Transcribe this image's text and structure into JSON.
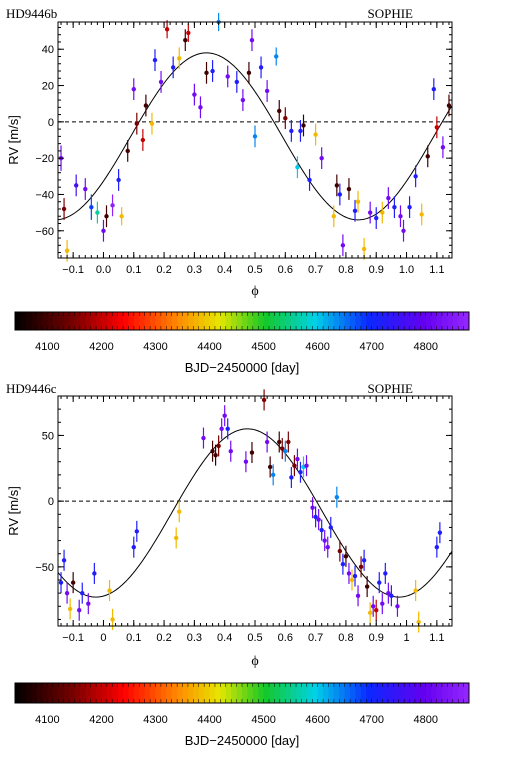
{
  "chart_data": [
    {
      "type": "scatter",
      "title": "HD9446b",
      "label_right": "SOPHIE",
      "xlabel": "ϕ",
      "ylabel": "RV [m/s]",
      "xlim": [
        -0.15,
        1.15
      ],
      "ylim": [
        -75,
        55
      ],
      "xticks": [
        -0.1,
        0.0,
        0.1,
        0.2,
        0.3,
        0.4,
        0.5,
        0.6,
        0.7,
        0.8,
        0.9,
        1.0,
        1.1
      ],
      "xtick_labels": [
        "−0.1",
        "0.0",
        "0.1",
        "0.2",
        "0.3",
        "0.4",
        "0.5",
        "0.6",
        "0.7",
        "0.8",
        "0.9",
        "1.0",
        "1.1"
      ],
      "yticks": [
        -60,
        -40,
        -20,
        0,
        20,
        40
      ],
      "ytick_labels": [
        "−60",
        "−40",
        "−20",
        "0",
        "20",
        "40"
      ],
      "model": {
        "offset": -8,
        "amplitude": 46,
        "phase_of_max": 0.34
      },
      "zero_line": 0,
      "points": [
        {
          "x": -0.14,
          "y": -20,
          "t": 4820,
          "err": 7
        },
        {
          "x": -0.13,
          "y": -48,
          "t": 4150,
          "err": 6
        },
        {
          "x": -0.12,
          "y": -71,
          "t": 4380,
          "err": 6
        },
        {
          "x": -0.09,
          "y": -35,
          "t": 4760,
          "err": 6
        },
        {
          "x": -0.06,
          "y": -37,
          "t": 4820,
          "err": 6
        },
        {
          "x": -0.04,
          "y": -47,
          "t": 4680,
          "err": 7
        },
        {
          "x": -0.02,
          "y": -50,
          "t": 4560,
          "err": 6
        },
        {
          "x": 0.0,
          "y": -60,
          "t": 4810,
          "err": 6
        },
        {
          "x": 0.01,
          "y": -52,
          "t": 4100,
          "err": 6
        },
        {
          "x": 0.03,
          "y": -46,
          "t": 4870,
          "err": 6
        },
        {
          "x": 0.05,
          "y": -32,
          "t": 4720,
          "err": 6
        },
        {
          "x": 0.06,
          "y": -52,
          "t": 4380,
          "err": 5
        },
        {
          "x": 0.08,
          "y": -16,
          "t": 4100,
          "err": 6
        },
        {
          "x": 0.1,
          "y": 18,
          "t": 4820,
          "err": 6
        },
        {
          "x": 0.11,
          "y": -1,
          "t": 4150,
          "err": 6
        },
        {
          "x": 0.13,
          "y": -10,
          "t": 4200,
          "err": 6
        },
        {
          "x": 0.14,
          "y": 9,
          "t": 4100,
          "err": 6
        },
        {
          "x": 0.16,
          "y": -1,
          "t": 4380,
          "err": 6
        },
        {
          "x": 0.17,
          "y": 34,
          "t": 4720,
          "err": 6
        },
        {
          "x": 0.19,
          "y": 22,
          "t": 4820,
          "err": 6
        },
        {
          "x": 0.21,
          "y": 51,
          "t": 4200,
          "err": 5
        },
        {
          "x": 0.23,
          "y": 30,
          "t": 4720,
          "err": 6
        },
        {
          "x": 0.25,
          "y": 35,
          "t": 4380,
          "err": 6
        },
        {
          "x": 0.27,
          "y": 45,
          "t": 4100,
          "err": 6
        },
        {
          "x": 0.28,
          "y": 49,
          "t": 4200,
          "err": 5
        },
        {
          "x": 0.3,
          "y": 15,
          "t": 4820,
          "err": 6
        },
        {
          "x": 0.32,
          "y": 8,
          "t": 4820,
          "err": 6
        },
        {
          "x": 0.34,
          "y": 27,
          "t": 4100,
          "err": 6
        },
        {
          "x": 0.36,
          "y": 28,
          "t": 4720,
          "err": 6
        },
        {
          "x": 0.38,
          "y": 55,
          "t": 4640,
          "err": 5
        },
        {
          "x": 0.41,
          "y": 25,
          "t": 4820,
          "err": 6
        },
        {
          "x": 0.44,
          "y": 22,
          "t": 4720,
          "err": 6
        },
        {
          "x": 0.46,
          "y": 12,
          "t": 4820,
          "err": 6
        },
        {
          "x": 0.48,
          "y": 27,
          "t": 4100,
          "err": 6
        },
        {
          "x": 0.49,
          "y": 45,
          "t": 4820,
          "err": 6
        },
        {
          "x": 0.5,
          "y": -8,
          "t": 4640,
          "err": 6
        },
        {
          "x": 0.52,
          "y": 30,
          "t": 4720,
          "err": 6
        },
        {
          "x": 0.54,
          "y": 17,
          "t": 4820,
          "err": 6
        },
        {
          "x": 0.57,
          "y": 36,
          "t": 4640,
          "err": 5
        },
        {
          "x": 0.58,
          "y": 6,
          "t": 4100,
          "err": 6
        },
        {
          "x": 0.6,
          "y": 2,
          "t": 4150,
          "err": 6
        },
        {
          "x": 0.62,
          "y": -5,
          "t": 4720,
          "err": 6
        },
        {
          "x": 0.64,
          "y": -25,
          "t": 4600,
          "err": 6
        },
        {
          "x": 0.65,
          "y": -5,
          "t": 4720,
          "err": 6
        },
        {
          "x": 0.66,
          "y": -2,
          "t": 4100,
          "err": 6
        },
        {
          "x": 0.68,
          "y": -32,
          "t": 4720,
          "err": 6
        },
        {
          "x": 0.7,
          "y": -7,
          "t": 4380,
          "err": 6
        },
        {
          "x": 0.72,
          "y": -20,
          "t": 4820,
          "err": 6
        },
        {
          "x": 0.76,
          "y": -52,
          "t": 4380,
          "err": 6
        },
        {
          "x": 0.77,
          "y": -35,
          "t": 4100,
          "err": 6
        },
        {
          "x": 0.78,
          "y": -40,
          "t": 4720,
          "err": 6
        },
        {
          "x": 0.79,
          "y": -68,
          "t": 4820,
          "err": 6
        },
        {
          "x": 0.81,
          "y": -37,
          "t": 4100,
          "err": 6
        },
        {
          "x": 0.83,
          "y": -49,
          "t": 4720,
          "err": 6
        },
        {
          "x": 0.84,
          "y": -44,
          "t": 4380,
          "err": 6
        },
        {
          "x": 0.86,
          "y": -70,
          "t": 4380,
          "err": 6
        },
        {
          "x": 0.88,
          "y": -50,
          "t": 4820,
          "err": 6
        },
        {
          "x": 0.9,
          "y": -53,
          "t": 4720,
          "err": 6
        },
        {
          "x": 0.92,
          "y": -50,
          "t": 4380,
          "err": 6
        },
        {
          "x": 0.94,
          "y": -42,
          "t": 4820,
          "err": 6
        },
        {
          "x": 0.96,
          "y": -47,
          "t": 4720,
          "err": 6
        },
        {
          "x": 0.98,
          "y": -52,
          "t": 4820,
          "err": 6
        },
        {
          "x": 0.99,
          "y": -60,
          "t": 4820,
          "err": 6
        },
        {
          "x": 1.01,
          "y": -47,
          "t": 4720,
          "err": 6
        },
        {
          "x": 1.03,
          "y": -30,
          "t": 4720,
          "err": 6
        },
        {
          "x": 1.05,
          "y": -51,
          "t": 4380,
          "err": 6
        },
        {
          "x": 1.07,
          "y": -19,
          "t": 4100,
          "err": 6
        },
        {
          "x": 1.09,
          "y": 18,
          "t": 4720,
          "err": 6
        },
        {
          "x": 1.1,
          "y": -3,
          "t": 4200,
          "err": 6
        },
        {
          "x": 1.12,
          "y": -14,
          "t": 4820,
          "err": 6
        },
        {
          "x": 1.14,
          "y": 9,
          "t": 4100,
          "err": 6
        }
      ]
    },
    {
      "type": "scatter",
      "title": "HD9446c",
      "label_right": "SOPHIE",
      "xlabel": "ϕ",
      "ylabel": "RV [m/s]",
      "xlim": [
        -0.15,
        1.15
      ],
      "ylim": [
        -95,
        80
      ],
      "xticks": [
        -0.1,
        0.0,
        0.1,
        0.2,
        0.3,
        0.4,
        0.5,
        0.6,
        0.7,
        0.8,
        0.9,
        1.0,
        1.1
      ],
      "xtick_labels": [
        "−0.1",
        "0",
        "0.1",
        "0.2",
        "0.3",
        "0.4",
        "0.5",
        "0.6",
        "0.7",
        "0.8",
        "0.9",
        "1",
        "1.1"
      ],
      "yticks": [
        -50,
        0,
        50
      ],
      "ytick_labels": [
        "−50",
        "0",
        "50"
      ],
      "model": {
        "offset": -9,
        "amplitude": 64,
        "phase_of_max": 0.475
      },
      "zero_line": 0,
      "points": [
        {
          "x": -0.14,
          "y": -62,
          "t": 4720,
          "err": 8
        },
        {
          "x": -0.13,
          "y": -45,
          "t": 4720,
          "err": 8
        },
        {
          "x": -0.12,
          "y": -70,
          "t": 4820,
          "err": 8
        },
        {
          "x": -0.11,
          "y": -82,
          "t": 4380,
          "err": 8
        },
        {
          "x": -0.1,
          "y": -62,
          "t": 4100,
          "err": 8
        },
        {
          "x": -0.08,
          "y": -83,
          "t": 4820,
          "err": 8
        },
        {
          "x": -0.07,
          "y": -70,
          "t": 4720,
          "err": 8
        },
        {
          "x": -0.05,
          "y": -78,
          "t": 4820,
          "err": 8
        },
        {
          "x": -0.03,
          "y": -55,
          "t": 4720,
          "err": 8
        },
        {
          "x": 0.02,
          "y": -68,
          "t": 4380,
          "err": 8
        },
        {
          "x": 0.03,
          "y": -90,
          "t": 4380,
          "err": 8
        },
        {
          "x": 0.1,
          "y": -35,
          "t": 4720,
          "err": 8
        },
        {
          "x": 0.11,
          "y": -23,
          "t": 4720,
          "err": 8
        },
        {
          "x": 0.24,
          "y": -28,
          "t": 4380,
          "err": 8
        },
        {
          "x": 0.25,
          "y": -8,
          "t": 4380,
          "err": 8
        },
        {
          "x": 0.33,
          "y": 48,
          "t": 4820,
          "err": 8
        },
        {
          "x": 0.36,
          "y": 38,
          "t": 4100,
          "err": 8
        },
        {
          "x": 0.37,
          "y": 35,
          "t": 4100,
          "err": 8
        },
        {
          "x": 0.38,
          "y": 42,
          "t": 4150,
          "err": 8
        },
        {
          "x": 0.39,
          "y": 55,
          "t": 4820,
          "err": 8
        },
        {
          "x": 0.4,
          "y": 65,
          "t": 4820,
          "err": 8
        },
        {
          "x": 0.41,
          "y": 55,
          "t": 4720,
          "err": 8
        },
        {
          "x": 0.42,
          "y": 38,
          "t": 4820,
          "err": 8
        },
        {
          "x": 0.47,
          "y": 30,
          "t": 4820,
          "err": 8
        },
        {
          "x": 0.49,
          "y": 37,
          "t": 4100,
          "err": 8
        },
        {
          "x": 0.53,
          "y": 77,
          "t": 4150,
          "err": 8
        },
        {
          "x": 0.54,
          "y": 45,
          "t": 4820,
          "err": 8
        },
        {
          "x": 0.55,
          "y": 26,
          "t": 4100,
          "err": 8
        },
        {
          "x": 0.56,
          "y": 20,
          "t": 4640,
          "err": 8
        },
        {
          "x": 0.58,
          "y": 45,
          "t": 4100,
          "err": 8
        },
        {
          "x": 0.59,
          "y": 40,
          "t": 4150,
          "err": 8
        },
        {
          "x": 0.6,
          "y": 38,
          "t": 4640,
          "err": 8
        },
        {
          "x": 0.61,
          "y": 45,
          "t": 4150,
          "err": 8
        },
        {
          "x": 0.62,
          "y": 18,
          "t": 4720,
          "err": 8
        },
        {
          "x": 0.63,
          "y": 27,
          "t": 4150,
          "err": 8
        },
        {
          "x": 0.64,
          "y": 32,
          "t": 4820,
          "err": 8
        },
        {
          "x": 0.65,
          "y": 22,
          "t": 4720,
          "err": 8
        },
        {
          "x": 0.66,
          "y": 26,
          "t": 4600,
          "err": 8
        },
        {
          "x": 0.67,
          "y": 27,
          "t": 4820,
          "err": 8
        },
        {
          "x": 0.69,
          "y": -5,
          "t": 4820,
          "err": 8
        },
        {
          "x": 0.7,
          "y": -12,
          "t": 4720,
          "err": 8
        },
        {
          "x": 0.71,
          "y": -14,
          "t": 4820,
          "err": 8
        },
        {
          "x": 0.72,
          "y": -22,
          "t": 4720,
          "err": 8
        },
        {
          "x": 0.73,
          "y": -30,
          "t": 4820,
          "err": 8
        },
        {
          "x": 0.74,
          "y": -35,
          "t": 4820,
          "err": 8
        },
        {
          "x": 0.75,
          "y": -20,
          "t": 4720,
          "err": 8
        },
        {
          "x": 0.77,
          "y": 3,
          "t": 4640,
          "err": 8
        },
        {
          "x": 0.78,
          "y": -38,
          "t": 4150,
          "err": 8
        },
        {
          "x": 0.79,
          "y": -48,
          "t": 4720,
          "err": 8
        },
        {
          "x": 0.8,
          "y": -42,
          "t": 4100,
          "err": 8
        },
        {
          "x": 0.81,
          "y": -55,
          "t": 4820,
          "err": 8
        },
        {
          "x": 0.82,
          "y": -60,
          "t": 4380,
          "err": 8
        },
        {
          "x": 0.83,
          "y": -57,
          "t": 4720,
          "err": 8
        },
        {
          "x": 0.84,
          "y": -72,
          "t": 4820,
          "err": 8
        },
        {
          "x": 0.85,
          "y": -50,
          "t": 4150,
          "err": 8
        },
        {
          "x": 0.86,
          "y": -45,
          "t": 4720,
          "err": 8
        },
        {
          "x": 0.87,
          "y": -65,
          "t": 4100,
          "err": 8
        },
        {
          "x": 0.88,
          "y": -85,
          "t": 4380,
          "err": 8
        },
        {
          "x": 0.89,
          "y": -80,
          "t": 4820,
          "err": 8
        },
        {
          "x": 0.9,
          "y": -83,
          "t": 4200,
          "err": 8
        },
        {
          "x": 0.91,
          "y": -62,
          "t": 4720,
          "err": 8
        },
        {
          "x": 0.92,
          "y": -78,
          "t": 4820,
          "err": 8
        },
        {
          "x": 0.93,
          "y": -55,
          "t": 4720,
          "err": 8
        },
        {
          "x": 0.94,
          "y": -70,
          "t": 4820,
          "err": 8
        },
        {
          "x": 0.95,
          "y": -72,
          "t": 4720,
          "err": 8
        },
        {
          "x": 0.97,
          "y": -80,
          "t": 4820,
          "err": 8
        },
        {
          "x": 1.03,
          "y": -68,
          "t": 4380,
          "err": 8
        },
        {
          "x": 1.04,
          "y": -92,
          "t": 4380,
          "err": 8
        },
        {
          "x": 1.1,
          "y": -35,
          "t": 4720,
          "err": 8
        },
        {
          "x": 1.11,
          "y": -24,
          "t": 4720,
          "err": 8
        }
      ]
    }
  ],
  "colorbar": {
    "range": [
      4040,
      4880
    ],
    "ticks": [
      "4100",
      "4200",
      "4300",
      "4400",
      "4500",
      "4600",
      "4700",
      "4800"
    ],
    "label": "BJD−2450000 [day]"
  }
}
